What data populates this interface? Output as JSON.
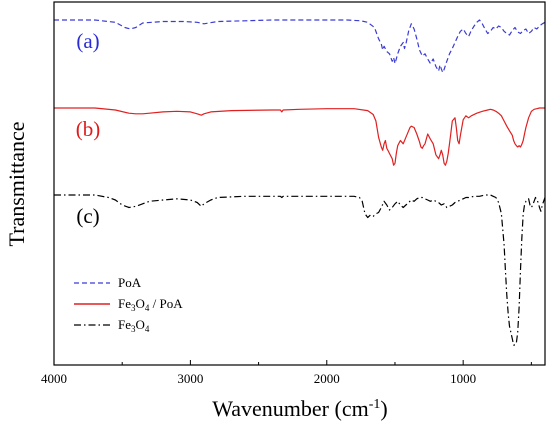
{
  "chart_data": {
    "type": "line",
    "xlabel": "Wavenumber (cm",
    "xlabel_superscript": "-1",
    "xlabel_suffix": ")",
    "ylabel": "Transmittance",
    "xlim": [
      4000,
      400
    ],
    "x_reversed": true,
    "y_ticks_shown": false,
    "grid": false,
    "legend_position": "bottom-left",
    "x_ticks": [
      {
        "value": 4000,
        "label": "4000"
      },
      {
        "value": 3000,
        "label": "3000"
      },
      {
        "value": 2000,
        "label": "2000"
      },
      {
        "value": 1000,
        "label": "1000"
      }
    ],
    "panel_labels": [
      {
        "text": "(a)",
        "color": "#2a2ad6",
        "series": 0
      },
      {
        "text": "(b)",
        "color": "#e01a1a",
        "series": 1
      },
      {
        "text": "(c)",
        "color": "#000000",
        "series": 2
      }
    ],
    "series": [
      {
        "name": "PoA",
        "color": "#3b3bd6",
        "dash": "5,3",
        "x": [
          4000,
          3700,
          3550,
          3480,
          3440,
          3400,
          3350,
          3200,
          3050,
          2950,
          2900,
          2800,
          2600,
          2400,
          2200,
          2000,
          1850,
          1750,
          1700,
          1650,
          1620,
          1600,
          1590,
          1580,
          1560,
          1540,
          1520,
          1510,
          1500,
          1490,
          1480,
          1460,
          1440,
          1430,
          1420,
          1400,
          1380,
          1360,
          1340,
          1320,
          1300,
          1280,
          1260,
          1250,
          1240,
          1220,
          1200,
          1190,
          1180,
          1170,
          1160,
          1150,
          1140,
          1120,
          1110,
          1100,
          1080,
          1060,
          1040,
          1020,
          1000,
          980,
          960,
          940,
          920,
          900,
          880,
          860,
          840,
          820,
          800,
          780,
          760,
          740,
          720,
          700,
          680,
          660,
          640,
          620,
          600,
          580,
          560,
          540,
          520,
          500,
          480,
          460,
          440,
          420,
          400
        ],
        "y": [
          0.0,
          0.0,
          0.03,
          0.1,
          0.12,
          0.1,
          0.04,
          0.02,
          0.02,
          0.03,
          0.05,
          0.02,
          0.01,
          0.0,
          0.0,
          0.0,
          0.0,
          0.01,
          0.03,
          0.1,
          0.25,
          0.32,
          0.4,
          0.35,
          0.42,
          0.45,
          0.55,
          0.5,
          0.58,
          0.52,
          0.45,
          0.35,
          0.3,
          0.38,
          0.32,
          0.15,
          0.05,
          0.12,
          0.25,
          0.4,
          0.48,
          0.45,
          0.52,
          0.55,
          0.58,
          0.52,
          0.62,
          0.65,
          0.68,
          0.6,
          0.65,
          0.7,
          0.66,
          0.55,
          0.5,
          0.45,
          0.38,
          0.3,
          0.22,
          0.15,
          0.12,
          0.18,
          0.22,
          0.14,
          0.08,
          0.03,
          0.0,
          0.05,
          0.12,
          0.18,
          0.15,
          0.1,
          0.12,
          0.08,
          0.1,
          0.15,
          0.18,
          0.2,
          0.14,
          0.1,
          0.16,
          0.18,
          0.14,
          0.12,
          0.18,
          0.15,
          0.1,
          0.12,
          0.08,
          0.05,
          0.03
        ]
      },
      {
        "name": "Fe3O4 / PoA",
        "color": "#e02020",
        "dash": "",
        "x": [
          4000,
          3700,
          3550,
          3450,
          3400,
          3350,
          3300,
          3200,
          3100,
          3000,
          2950,
          2920,
          2900,
          2850,
          2700,
          2400,
          2340,
          2330,
          2320,
          2200,
          2000,
          1800,
          1700,
          1660,
          1640,
          1620,
          1600,
          1590,
          1580,
          1570,
          1560,
          1550,
          1540,
          1520,
          1510,
          1500,
          1490,
          1480,
          1460,
          1440,
          1420,
          1400,
          1390,
          1380,
          1360,
          1340,
          1320,
          1310,
          1300,
          1290,
          1280,
          1260,
          1240,
          1220,
          1200,
          1180,
          1170,
          1160,
          1150,
          1140,
          1130,
          1120,
          1110,
          1100,
          1090,
          1080,
          1060,
          1050,
          1040,
          1030,
          1020,
          1000,
          980,
          960,
          940,
          900,
          860,
          820,
          800,
          780,
          760,
          740,
          720,
          700,
          680,
          660,
          640,
          630,
          620,
          610,
          600,
          590,
          580,
          570,
          560,
          550,
          540,
          520,
          500,
          480,
          460,
          440,
          420,
          400
        ],
        "y": [
          0.0,
          0.0,
          0.03,
          0.08,
          0.09,
          0.09,
          0.08,
          0.06,
          0.05,
          0.06,
          0.09,
          0.11,
          0.09,
          0.06,
          0.04,
          0.03,
          0.03,
          0.06,
          0.03,
          0.02,
          0.01,
          0.01,
          0.04,
          0.1,
          0.2,
          0.45,
          0.6,
          0.65,
          0.55,
          0.5,
          0.62,
          0.66,
          0.7,
          0.78,
          0.88,
          0.85,
          0.7,
          0.58,
          0.5,
          0.55,
          0.45,
          0.35,
          0.3,
          0.28,
          0.3,
          0.4,
          0.52,
          0.6,
          0.62,
          0.58,
          0.55,
          0.4,
          0.48,
          0.55,
          0.72,
          0.78,
          0.72,
          0.65,
          0.72,
          0.85,
          0.88,
          0.82,
          0.7,
          0.55,
          0.38,
          0.2,
          0.15,
          0.3,
          0.5,
          0.55,
          0.42,
          0.18,
          0.12,
          0.15,
          0.12,
          0.08,
          0.05,
          0.03,
          0.02,
          0.03,
          0.05,
          0.08,
          0.12,
          0.2,
          0.28,
          0.35,
          0.42,
          0.5,
          0.55,
          0.58,
          0.6,
          0.58,
          0.6,
          0.56,
          0.5,
          0.4,
          0.3,
          0.15,
          0.05,
          0.02,
          0.01,
          0.0,
          0.0,
          0.0
        ]
      },
      {
        "name": "Fe3O4",
        "color": "#000000",
        "dash": "7,3,1.5,3",
        "x": [
          4000,
          3700,
          3600,
          3550,
          3500,
          3450,
          3400,
          3350,
          3300,
          3200,
          3100,
          3000,
          2950,
          2920,
          2900,
          2850,
          2800,
          2600,
          2400,
          2340,
          2330,
          2320,
          2200,
          2000,
          1800,
          1760,
          1740,
          1720,
          1700,
          1680,
          1660,
          1640,
          1620,
          1600,
          1580,
          1560,
          1540,
          1520,
          1500,
          1480,
          1460,
          1440,
          1420,
          1400,
          1380,
          1360,
          1340,
          1320,
          1300,
          1280,
          1260,
          1240,
          1220,
          1200,
          1180,
          1160,
          1140,
          1120,
          1100,
          1080,
          1060,
          1040,
          1000,
          980,
          960,
          920,
          880,
          840,
          800,
          780,
          760,
          740,
          720,
          700,
          690,
          680,
          670,
          660,
          650,
          640,
          630,
          620,
          610,
          600,
          590,
          580,
          570,
          560,
          550,
          540,
          530,
          520,
          510,
          500,
          490,
          480,
          470,
          460,
          450,
          440,
          430,
          420,
          400
        ],
        "y": [
          0.0,
          0.0,
          0.02,
          0.04,
          0.08,
          0.1,
          0.09,
          0.07,
          0.05,
          0.04,
          0.03,
          0.04,
          0.06,
          0.09,
          0.07,
          0.04,
          0.02,
          0.01,
          0.01,
          0.01,
          0.02,
          0.01,
          0.01,
          0.01,
          0.01,
          0.02,
          0.05,
          0.15,
          0.18,
          0.16,
          0.17,
          0.15,
          0.14,
          0.1,
          0.05,
          0.08,
          0.12,
          0.1,
          0.07,
          0.05,
          0.08,
          0.1,
          0.08,
          0.06,
          0.04,
          0.05,
          0.03,
          0.02,
          0.02,
          0.03,
          0.04,
          0.05,
          0.04,
          0.05,
          0.06,
          0.08,
          0.07,
          0.1,
          0.09,
          0.08,
          0.06,
          0.05,
          0.03,
          0.02,
          0.02,
          0.01,
          0.01,
          0.0,
          0.0,
          0.01,
          0.02,
          0.06,
          0.15,
          0.4,
          0.6,
          0.8,
          0.95,
          1.05,
          1.1,
          1.15,
          1.2,
          1.2,
          1.18,
          1.1,
          0.9,
          0.6,
          0.35,
          0.15,
          0.08,
          0.05,
          0.04,
          0.03,
          0.08,
          0.1,
          0.08,
          0.05,
          0.02,
          0.04,
          0.06,
          0.1,
          0.13,
          0.08,
          0.02
        ]
      }
    ]
  }
}
